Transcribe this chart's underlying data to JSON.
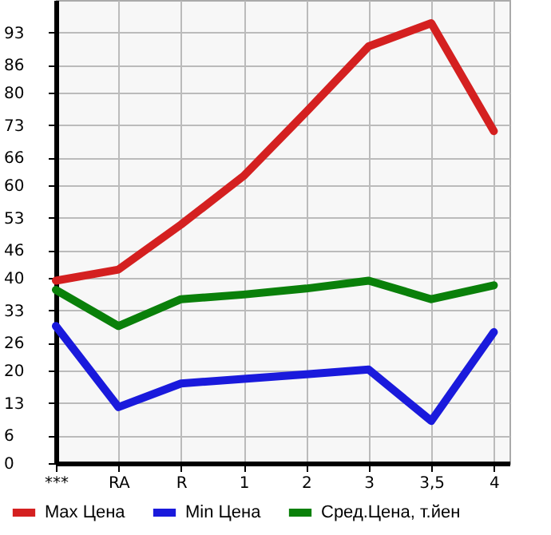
{
  "chart_data": {
    "type": "line",
    "categories": [
      "***",
      "RA",
      "R",
      "1",
      "2",
      "3",
      "3,5",
      "4"
    ],
    "series": [
      {
        "name": "Max Цена",
        "color": "#d42020",
        "values": [
          39.4,
          41.8,
          51.5,
          62,
          75.8,
          90,
          95,
          71.7
        ]
      },
      {
        "name": "Min Цена",
        "color": "#1a1adc",
        "values": [
          29.6,
          12.1,
          17.2,
          18.2,
          19.2,
          20.2,
          9.1,
          28.3
        ]
      },
      {
        "name": "Сред.Цена, т.йен",
        "color": "#0a800a",
        "values": [
          37.4,
          29.6,
          35.4,
          36.4,
          37.7,
          39.4,
          35.4,
          38.4
        ]
      }
    ],
    "ylim": [
      0,
      100
    ],
    "yticks": [
      0,
      6,
      13,
      20,
      26,
      33,
      40,
      46,
      53,
      60,
      66,
      73,
      80,
      86,
      93
    ],
    "grid": true,
    "legend": "bottom",
    "marker": "none",
    "line_style": "solid"
  }
}
